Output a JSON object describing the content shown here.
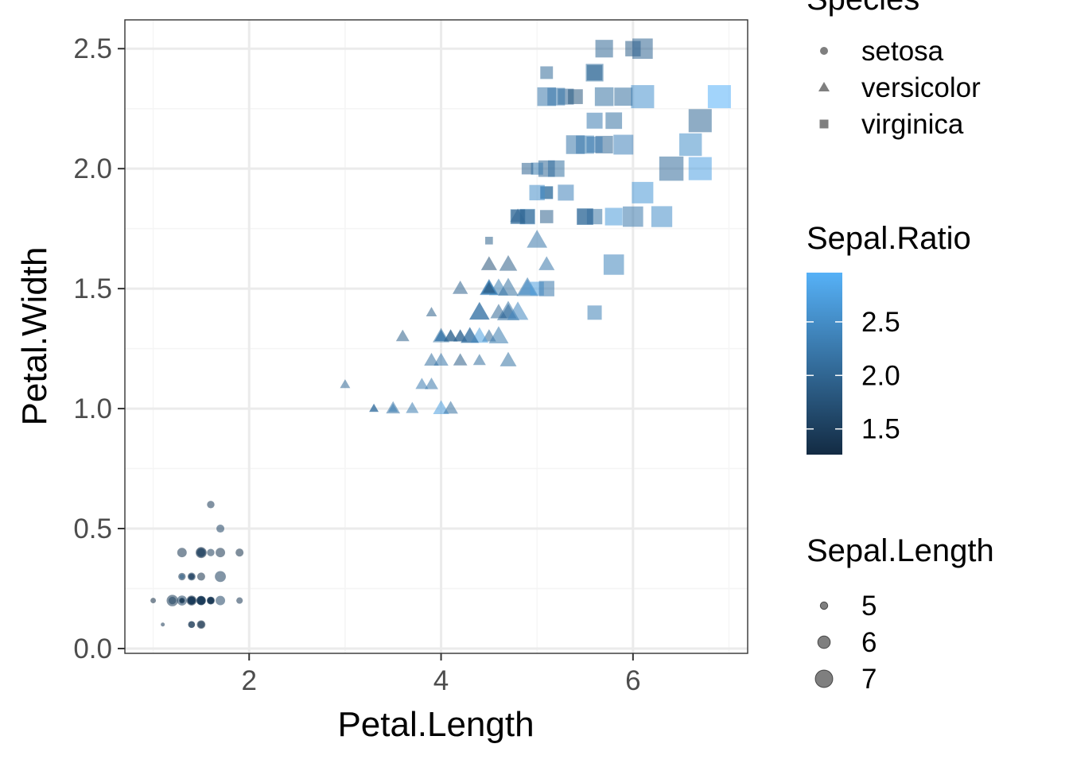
{
  "chart_data": {
    "type": "scatter",
    "x_label": "Petal.Length",
    "y_label": "Petal.Width",
    "xlim": [
      0.705,
      7.195
    ],
    "ylim": [
      -0.02,
      2.62
    ],
    "x_ticks": [
      2,
      4,
      6
    ],
    "x_tick_labels": [
      "2",
      "4",
      "6"
    ],
    "y_ticks": [
      0.0,
      0.5,
      1.0,
      1.5,
      2.0,
      2.5
    ],
    "y_tick_labels": [
      "0.0",
      "0.5",
      "1.0",
      "1.5",
      "2.0",
      "2.5"
    ],
    "grid": true,
    "legend_position": "right",
    "colors": {
      "ratio_low": "#132B43",
      "ratio_high": "#56B1F7",
      "grid_major": "#EBEBEB",
      "grid_minor": "#F5F5F5",
      "panel_border": "#333333",
      "legend_marker": "#7F7F7F"
    },
    "legends": {
      "species": {
        "title": "Species",
        "entries": [
          {
            "label": "setosa",
            "shape": "circle"
          },
          {
            "label": "versicolor",
            "shape": "triangle"
          },
          {
            "label": "virginica",
            "shape": "square"
          }
        ]
      },
      "color": {
        "title": "Sepal.Ratio",
        "range": [
          1.26,
          2.96
        ],
        "breaks": [
          1.5,
          2.0,
          2.5
        ],
        "labels": [
          "1.5",
          "2.0",
          "2.5"
        ]
      },
      "size": {
        "title": "Sepal.Length",
        "breaks": [
          5,
          6,
          7
        ],
        "labels": [
          "5",
          "6",
          "7"
        ]
      }
    },
    "series": [
      {
        "name": "setosa",
        "shape": "circle",
        "points": [
          {
            "x": 1.4,
            "y": 0.2,
            "size": 5.1,
            "ratio": 1.46
          },
          {
            "x": 1.4,
            "y": 0.2,
            "size": 4.9,
            "ratio": 1.63
          },
          {
            "x": 1.3,
            "y": 0.2,
            "size": 4.7,
            "ratio": 1.47
          },
          {
            "x": 1.5,
            "y": 0.2,
            "size": 4.6,
            "ratio": 1.48
          },
          {
            "x": 1.4,
            "y": 0.2,
            "size": 5.0,
            "ratio": 1.39
          },
          {
            "x": 1.7,
            "y": 0.4,
            "size": 5.4,
            "ratio": 1.38
          },
          {
            "x": 1.4,
            "y": 0.3,
            "size": 4.6,
            "ratio": 1.35
          },
          {
            "x": 1.5,
            "y": 0.2,
            "size": 5.0,
            "ratio": 1.47
          },
          {
            "x": 1.4,
            "y": 0.2,
            "size": 4.4,
            "ratio": 1.52
          },
          {
            "x": 1.5,
            "y": 0.1,
            "size": 4.9,
            "ratio": 1.58
          },
          {
            "x": 1.5,
            "y": 0.2,
            "size": 5.4,
            "ratio": 1.46
          },
          {
            "x": 1.6,
            "y": 0.2,
            "size": 4.8,
            "ratio": 1.41
          },
          {
            "x": 1.4,
            "y": 0.1,
            "size": 4.8,
            "ratio": 1.6
          },
          {
            "x": 1.1,
            "y": 0.1,
            "size": 4.3,
            "ratio": 1.43
          },
          {
            "x": 1.2,
            "y": 0.2,
            "size": 5.8,
            "ratio": 1.45
          },
          {
            "x": 1.5,
            "y": 0.4,
            "size": 5.7,
            "ratio": 1.3
          },
          {
            "x": 1.3,
            "y": 0.4,
            "size": 5.4,
            "ratio": 1.38
          },
          {
            "x": 1.4,
            "y": 0.3,
            "size": 5.1,
            "ratio": 1.46
          },
          {
            "x": 1.7,
            "y": 0.3,
            "size": 5.7,
            "ratio": 1.5
          },
          {
            "x": 1.5,
            "y": 0.3,
            "size": 5.1,
            "ratio": 1.34
          },
          {
            "x": 1.7,
            "y": 0.2,
            "size": 5.4,
            "ratio": 1.59
          },
          {
            "x": 1.5,
            "y": 0.4,
            "size": 5.1,
            "ratio": 1.38
          },
          {
            "x": 1.0,
            "y": 0.2,
            "size": 4.6,
            "ratio": 1.28
          },
          {
            "x": 1.7,
            "y": 0.5,
            "size": 5.1,
            "ratio": 1.55
          },
          {
            "x": 1.9,
            "y": 0.2,
            "size": 4.8,
            "ratio": 1.41
          },
          {
            "x": 1.6,
            "y": 0.2,
            "size": 5.0,
            "ratio": 1.67
          },
          {
            "x": 1.6,
            "y": 0.4,
            "size": 5.0,
            "ratio": 1.47
          },
          {
            "x": 1.5,
            "y": 0.2,
            "size": 5.2,
            "ratio": 1.49
          },
          {
            "x": 1.4,
            "y": 0.2,
            "size": 5.2,
            "ratio": 1.53
          },
          {
            "x": 1.6,
            "y": 0.2,
            "size": 4.7,
            "ratio": 1.47
          },
          {
            "x": 1.6,
            "y": 0.2,
            "size": 4.8,
            "ratio": 1.55
          },
          {
            "x": 1.5,
            "y": 0.4,
            "size": 5.4,
            "ratio": 1.59
          },
          {
            "x": 1.5,
            "y": 0.1,
            "size": 5.2,
            "ratio": 1.27
          },
          {
            "x": 1.4,
            "y": 0.2,
            "size": 5.5,
            "ratio": 1.31
          },
          {
            "x": 1.5,
            "y": 0.2,
            "size": 4.9,
            "ratio": 1.58
          },
          {
            "x": 1.2,
            "y": 0.2,
            "size": 5.0,
            "ratio": 1.56
          },
          {
            "x": 1.3,
            "y": 0.2,
            "size": 5.5,
            "ratio": 1.57
          },
          {
            "x": 1.4,
            "y": 0.1,
            "size": 4.9,
            "ratio": 1.36
          },
          {
            "x": 1.3,
            "y": 0.2,
            "size": 4.4,
            "ratio": 1.47
          },
          {
            "x": 1.5,
            "y": 0.2,
            "size": 5.1,
            "ratio": 1.5
          },
          {
            "x": 1.3,
            "y": 0.3,
            "size": 5.0,
            "ratio": 1.43
          },
          {
            "x": 1.3,
            "y": 0.3,
            "size": 4.5,
            "ratio": 1.96
          },
          {
            "x": 1.3,
            "y": 0.2,
            "size": 4.4,
            "ratio": 1.38
          },
          {
            "x": 1.6,
            "y": 0.6,
            "size": 5.0,
            "ratio": 1.43
          },
          {
            "x": 1.9,
            "y": 0.4,
            "size": 5.1,
            "ratio": 1.34
          },
          {
            "x": 1.4,
            "y": 0.3,
            "size": 4.8,
            "ratio": 1.6
          },
          {
            "x": 1.6,
            "y": 0.2,
            "size": 5.1,
            "ratio": 1.34
          },
          {
            "x": 1.4,
            "y": 0.2,
            "size": 4.6,
            "ratio": 1.44
          },
          {
            "x": 1.5,
            "y": 0.2,
            "size": 5.3,
            "ratio": 1.43
          },
          {
            "x": 1.4,
            "y": 0.2,
            "size": 5.0,
            "ratio": 1.52
          }
        ]
      },
      {
        "name": "versicolor",
        "shape": "triangle",
        "points": [
          {
            "x": 4.7,
            "y": 1.4,
            "size": 7.0,
            "ratio": 2.19
          },
          {
            "x": 4.5,
            "y": 1.5,
            "size": 6.4,
            "ratio": 2.0
          },
          {
            "x": 4.9,
            "y": 1.5,
            "size": 6.9,
            "ratio": 2.23
          },
          {
            "x": 4.0,
            "y": 1.3,
            "size": 5.5,
            "ratio": 2.39
          },
          {
            "x": 4.6,
            "y": 1.5,
            "size": 6.5,
            "ratio": 2.32
          },
          {
            "x": 4.5,
            "y": 1.3,
            "size": 5.7,
            "ratio": 2.04
          },
          {
            "x": 4.7,
            "y": 1.6,
            "size": 6.3,
            "ratio": 1.91
          },
          {
            "x": 3.3,
            "y": 1.0,
            "size": 4.9,
            "ratio": 2.04
          },
          {
            "x": 4.6,
            "y": 1.3,
            "size": 6.6,
            "ratio": 2.28
          },
          {
            "x": 3.9,
            "y": 1.4,
            "size": 5.2,
            "ratio": 1.93
          },
          {
            "x": 3.5,
            "y": 1.0,
            "size": 5.0,
            "ratio": 2.5
          },
          {
            "x": 4.2,
            "y": 1.5,
            "size": 5.9,
            "ratio": 1.97
          },
          {
            "x": 4.0,
            "y": 1.0,
            "size": 6.0,
            "ratio": 2.73
          },
          {
            "x": 4.7,
            "y": 1.4,
            "size": 6.1,
            "ratio": 2.1
          },
          {
            "x": 3.6,
            "y": 1.3,
            "size": 5.6,
            "ratio": 1.93
          },
          {
            "x": 4.4,
            "y": 1.4,
            "size": 6.7,
            "ratio": 2.16
          },
          {
            "x": 4.5,
            "y": 1.5,
            "size": 5.6,
            "ratio": 1.87
          },
          {
            "x": 4.1,
            "y": 1.0,
            "size": 5.8,
            "ratio": 2.15
          },
          {
            "x": 4.5,
            "y": 1.5,
            "size": 6.2,
            "ratio": 2.82
          },
          {
            "x": 3.9,
            "y": 1.1,
            "size": 5.6,
            "ratio": 2.24
          },
          {
            "x": 4.8,
            "y": 1.8,
            "size": 5.9,
            "ratio": 1.84
          },
          {
            "x": 4.0,
            "y": 1.3,
            "size": 6.1,
            "ratio": 2.18
          },
          {
            "x": 4.9,
            "y": 1.5,
            "size": 6.3,
            "ratio": 2.52
          },
          {
            "x": 4.7,
            "y": 1.2,
            "size": 6.1,
            "ratio": 2.18
          },
          {
            "x": 4.3,
            "y": 1.3,
            "size": 6.4,
            "ratio": 2.21
          },
          {
            "x": 4.4,
            "y": 1.4,
            "size": 6.6,
            "ratio": 2.2
          },
          {
            "x": 4.8,
            "y": 1.4,
            "size": 6.8,
            "ratio": 2.43
          },
          {
            "x": 5.0,
            "y": 1.7,
            "size": 6.7,
            "ratio": 2.23
          },
          {
            "x": 4.5,
            "y": 1.5,
            "size": 6.0,
            "ratio": 2.07
          },
          {
            "x": 3.5,
            "y": 1.0,
            "size": 5.7,
            "ratio": 2.19
          },
          {
            "x": 3.8,
            "y": 1.1,
            "size": 5.5,
            "ratio": 2.29
          },
          {
            "x": 3.7,
            "y": 1.0,
            "size": 5.5,
            "ratio": 2.29
          },
          {
            "x": 3.9,
            "y": 1.2,
            "size": 5.8,
            "ratio": 2.15
          },
          {
            "x": 5.1,
            "y": 1.6,
            "size": 6.0,
            "ratio": 2.22
          },
          {
            "x": 4.5,
            "y": 1.5,
            "size": 5.4,
            "ratio": 1.8
          },
          {
            "x": 4.5,
            "y": 1.6,
            "size": 6.0,
            "ratio": 1.76
          },
          {
            "x": 4.7,
            "y": 1.5,
            "size": 6.7,
            "ratio": 2.16
          },
          {
            "x": 4.4,
            "y": 1.3,
            "size": 6.3,
            "ratio": 2.74
          },
          {
            "x": 4.1,
            "y": 1.3,
            "size": 5.6,
            "ratio": 1.87
          },
          {
            "x": 4.0,
            "y": 1.3,
            "size": 5.5,
            "ratio": 2.2
          },
          {
            "x": 4.4,
            "y": 1.2,
            "size": 5.5,
            "ratio": 2.12
          },
          {
            "x": 4.6,
            "y": 1.4,
            "size": 6.1,
            "ratio": 2.03
          },
          {
            "x": 4.0,
            "y": 1.2,
            "size": 5.8,
            "ratio": 2.23
          },
          {
            "x": 3.3,
            "y": 1.0,
            "size": 5.0,
            "ratio": 2.17
          },
          {
            "x": 4.2,
            "y": 1.3,
            "size": 5.6,
            "ratio": 2.07
          },
          {
            "x": 4.2,
            "y": 1.2,
            "size": 5.7,
            "ratio": 1.9
          },
          {
            "x": 4.2,
            "y": 1.3,
            "size": 5.7,
            "ratio": 1.97
          },
          {
            "x": 4.3,
            "y": 1.3,
            "size": 6.2,
            "ratio": 2.14
          },
          {
            "x": 3.0,
            "y": 1.1,
            "size": 5.1,
            "ratio": 2.04
          },
          {
            "x": 4.1,
            "y": 1.3,
            "size": 5.7,
            "ratio": 2.04
          }
        ]
      },
      {
        "name": "virginica",
        "shape": "square",
        "points": [
          {
            "x": 6.0,
            "y": 2.5,
            "size": 6.3,
            "ratio": 1.91
          },
          {
            "x": 5.1,
            "y": 1.9,
            "size": 5.8,
            "ratio": 2.15
          },
          {
            "x": 5.9,
            "y": 2.1,
            "size": 7.1,
            "ratio": 2.37
          },
          {
            "x": 5.6,
            "y": 1.8,
            "size": 6.3,
            "ratio": 2.17
          },
          {
            "x": 5.8,
            "y": 2.2,
            "size": 6.5,
            "ratio": 2.17
          },
          {
            "x": 6.6,
            "y": 2.1,
            "size": 7.6,
            "ratio": 2.53
          },
          {
            "x": 4.5,
            "y": 1.7,
            "size": 4.9,
            "ratio": 1.96
          },
          {
            "x": 6.3,
            "y": 1.8,
            "size": 7.3,
            "ratio": 2.52
          },
          {
            "x": 5.8,
            "y": 1.8,
            "size": 6.7,
            "ratio": 2.68
          },
          {
            "x": 6.1,
            "y": 2.5,
            "size": 7.2,
            "ratio": 2.0
          },
          {
            "x": 5.1,
            "y": 2.0,
            "size": 6.5,
            "ratio": 2.03
          },
          {
            "x": 5.3,
            "y": 1.9,
            "size": 6.4,
            "ratio": 2.37
          },
          {
            "x": 5.5,
            "y": 2.1,
            "size": 6.8,
            "ratio": 2.27
          },
          {
            "x": 5.0,
            "y": 2.0,
            "size": 5.7,
            "ratio": 2.28
          },
          {
            "x": 5.1,
            "y": 2.4,
            "size": 5.8,
            "ratio": 2.07
          },
          {
            "x": 5.3,
            "y": 2.3,
            "size": 6.4,
            "ratio": 2.0
          },
          {
            "x": 5.5,
            "y": 1.8,
            "size": 6.5,
            "ratio": 2.17
          },
          {
            "x": 6.7,
            "y": 2.2,
            "size": 7.7,
            "ratio": 2.03
          },
          {
            "x": 6.9,
            "y": 2.3,
            "size": 7.7,
            "ratio": 2.96
          },
          {
            "x": 5.0,
            "y": 1.5,
            "size": 6.0,
            "ratio": 2.73
          },
          {
            "x": 5.7,
            "y": 2.3,
            "size": 6.9,
            "ratio": 2.16
          },
          {
            "x": 4.9,
            "y": 2.0,
            "size": 5.6,
            "ratio": 2.0
          },
          {
            "x": 6.7,
            "y": 2.0,
            "size": 7.7,
            "ratio": 2.75
          },
          {
            "x": 4.9,
            "y": 1.8,
            "size": 6.3,
            "ratio": 2.33
          },
          {
            "x": 5.7,
            "y": 2.1,
            "size": 6.7,
            "ratio": 2.03
          },
          {
            "x": 6.0,
            "y": 1.8,
            "size": 7.2,
            "ratio": 2.25
          },
          {
            "x": 4.8,
            "y": 1.8,
            "size": 6.2,
            "ratio": 2.21
          },
          {
            "x": 4.9,
            "y": 1.8,
            "size": 6.1,
            "ratio": 2.03
          },
          {
            "x": 5.6,
            "y": 2.1,
            "size": 6.4,
            "ratio": 2.29
          },
          {
            "x": 5.8,
            "y": 1.6,
            "size": 7.2,
            "ratio": 2.4
          },
          {
            "x": 6.1,
            "y": 1.9,
            "size": 7.4,
            "ratio": 2.64
          },
          {
            "x": 6.4,
            "y": 2.0,
            "size": 7.9,
            "ratio": 2.08
          },
          {
            "x": 5.6,
            "y": 2.2,
            "size": 6.4,
            "ratio": 2.29
          },
          {
            "x": 5.1,
            "y": 1.5,
            "size": 6.3,
            "ratio": 2.25
          },
          {
            "x": 5.6,
            "y": 1.4,
            "size": 6.1,
            "ratio": 2.35
          },
          {
            "x": 6.1,
            "y": 2.3,
            "size": 7.7,
            "ratio": 2.57
          },
          {
            "x": 5.6,
            "y": 2.4,
            "size": 6.3,
            "ratio": 1.85
          },
          {
            "x": 5.5,
            "y": 1.8,
            "size": 6.4,
            "ratio": 2.06
          },
          {
            "x": 4.8,
            "y": 1.8,
            "size": 6.0,
            "ratio": 2.0
          },
          {
            "x": 5.4,
            "y": 2.1,
            "size": 6.9,
            "ratio": 2.23
          },
          {
            "x": 5.6,
            "y": 2.4,
            "size": 6.7,
            "ratio": 2.16
          },
          {
            "x": 5.1,
            "y": 2.3,
            "size": 6.9,
            "ratio": 2.23
          },
          {
            "x": 5.1,
            "y": 1.9,
            "size": 5.8,
            "ratio": 2.15
          },
          {
            "x": 5.9,
            "y": 2.3,
            "size": 6.8,
            "ratio": 2.13
          },
          {
            "x": 5.7,
            "y": 2.5,
            "size": 6.7,
            "ratio": 2.03
          },
          {
            "x": 5.2,
            "y": 2.3,
            "size": 6.7,
            "ratio": 2.23
          },
          {
            "x": 5.0,
            "y": 1.9,
            "size": 6.3,
            "ratio": 2.52
          },
          {
            "x": 5.2,
            "y": 2.0,
            "size": 6.5,
            "ratio": 2.17
          },
          {
            "x": 5.4,
            "y": 2.3,
            "size": 6.2,
            "ratio": 1.82
          },
          {
            "x": 5.1,
            "y": 1.8,
            "size": 5.9,
            "ratio": 1.97
          }
        ]
      }
    ]
  }
}
